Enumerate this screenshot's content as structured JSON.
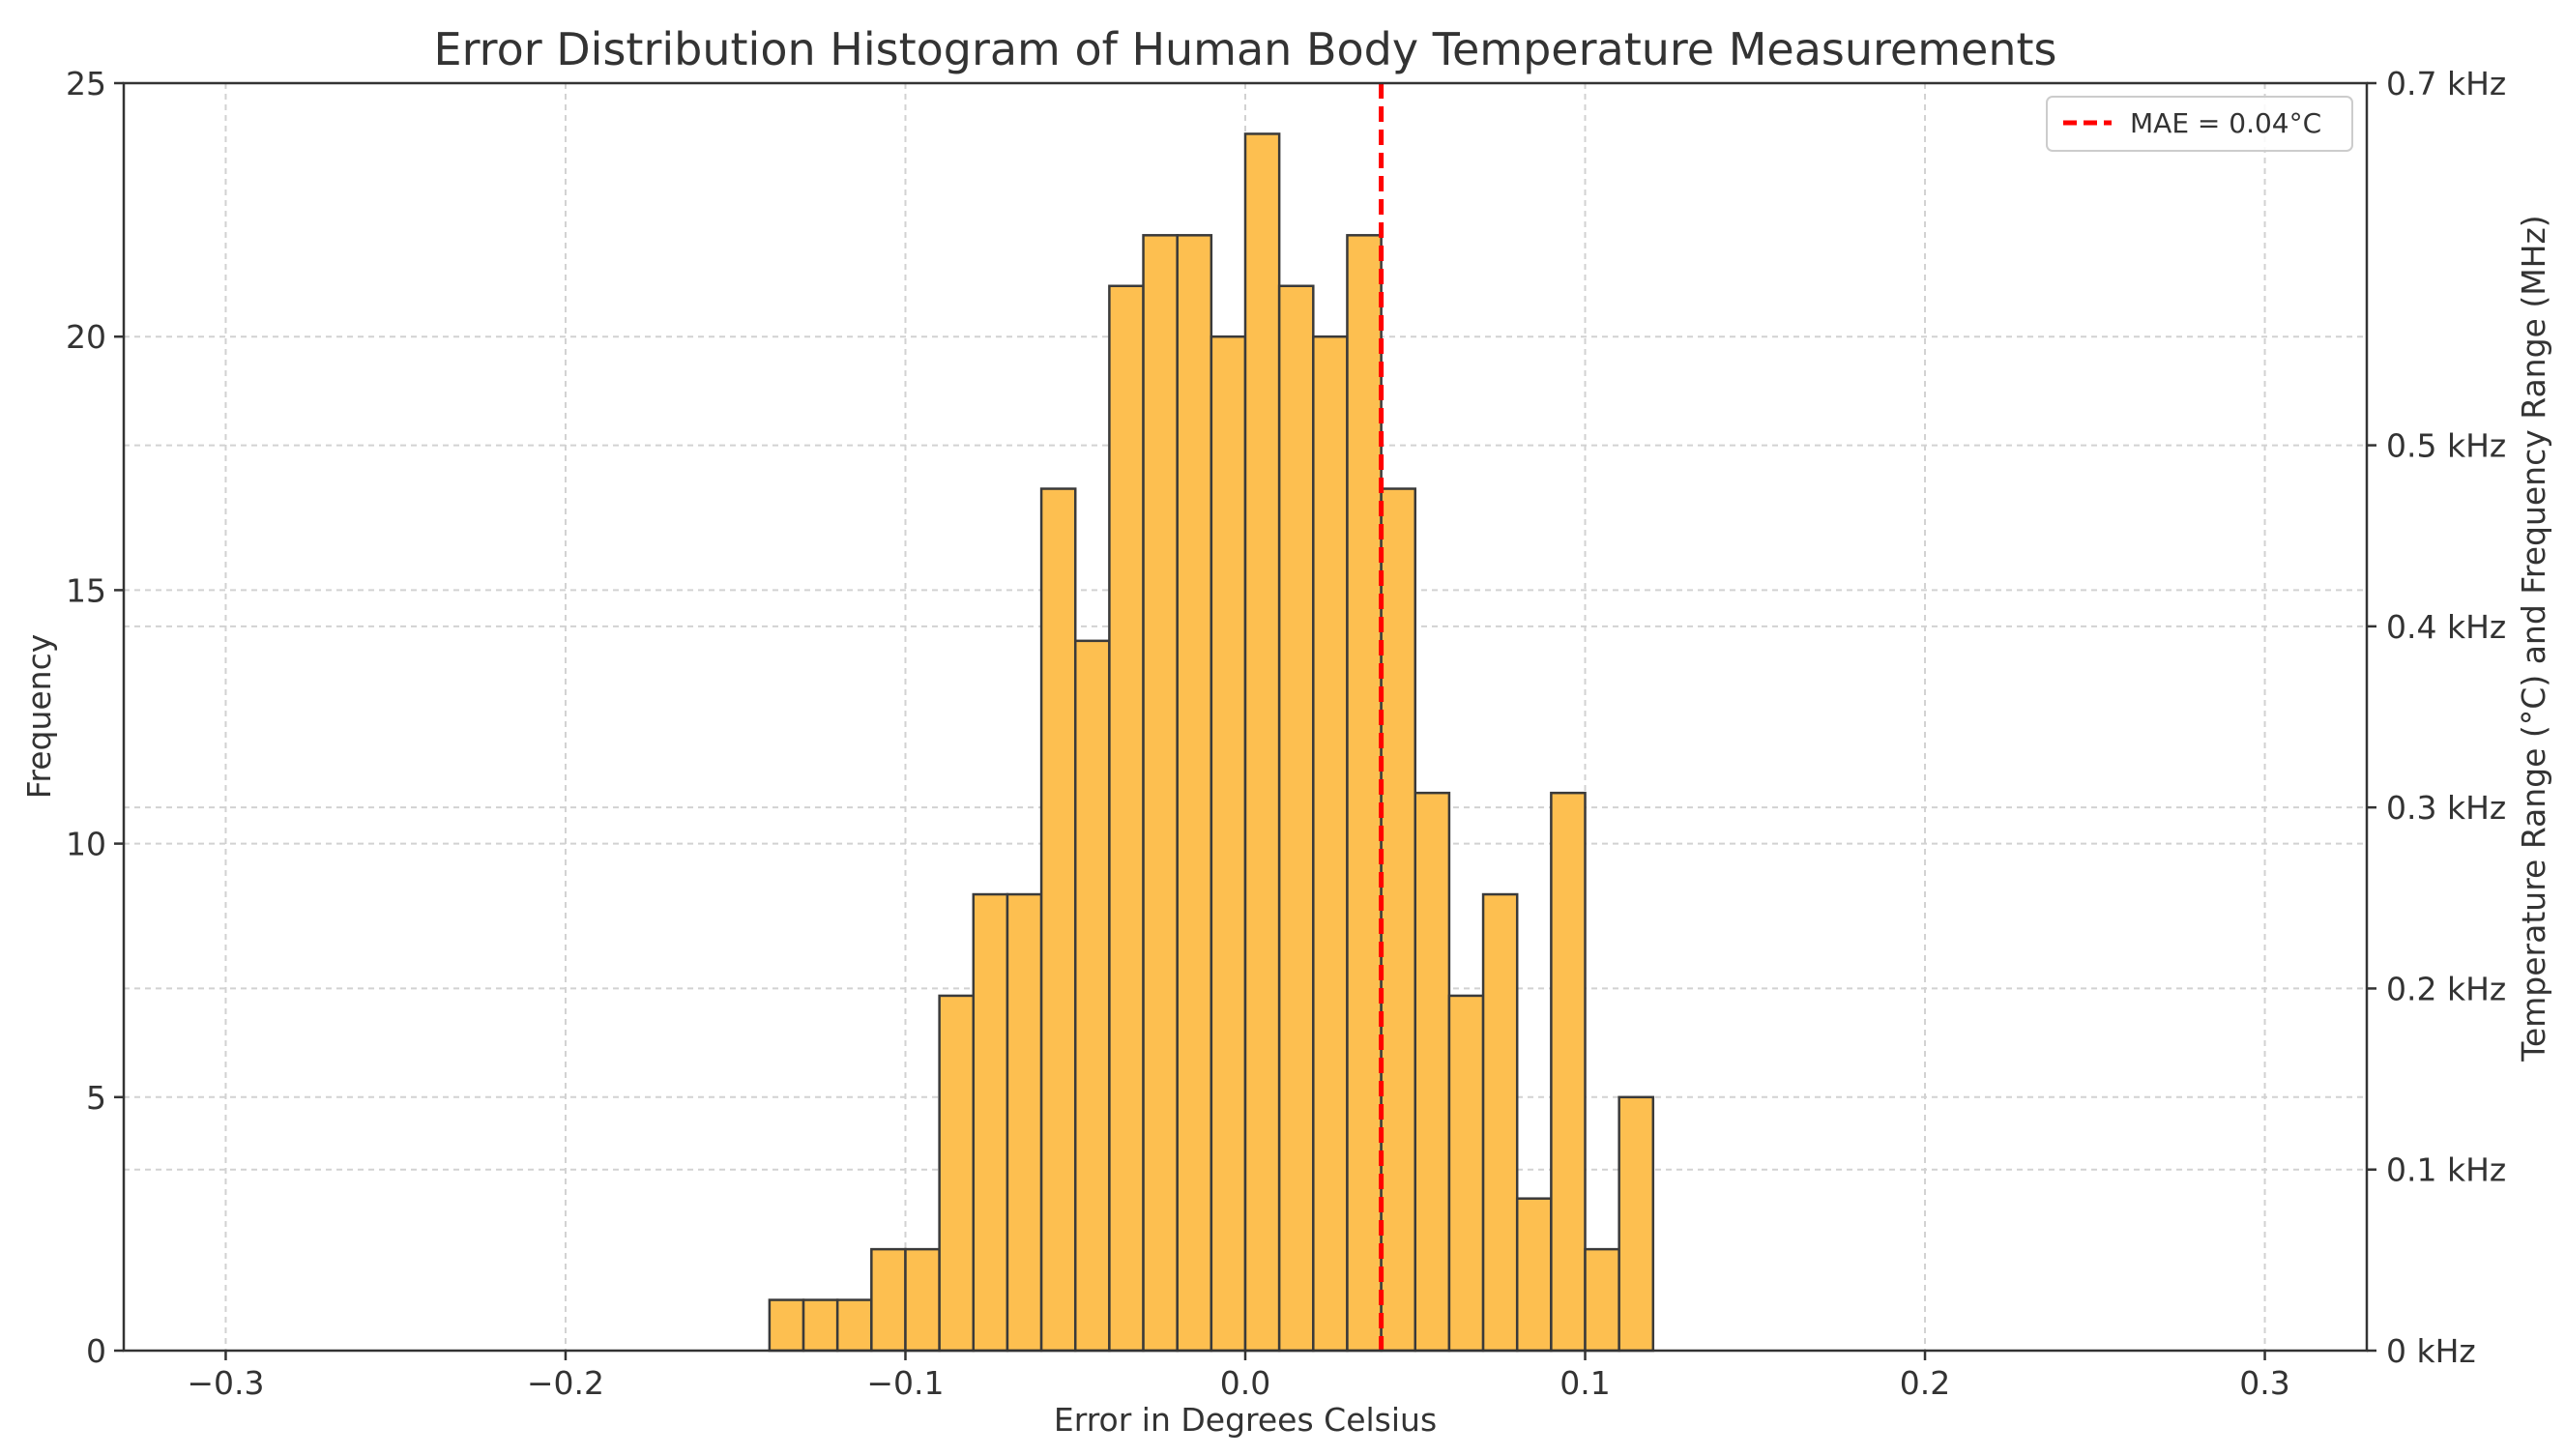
{
  "chart_data": {
    "type": "bar",
    "title": "Error Distribution Histogram of Human Body Temperature Measurements",
    "xlabel": "Error in Degrees Celsius",
    "ylabel": "Frequency",
    "y2label": "Temperature Range (°C) and Frequency Range (MHz)",
    "xlim": [
      -0.33,
      0.33
    ],
    "ylim": [
      0,
      25
    ],
    "y2lim": [
      0,
      0.7
    ],
    "grid": true,
    "x_ticks": [
      {
        "value": -0.3,
        "label": "−0.3"
      },
      {
        "value": -0.2,
        "label": "−0.2"
      },
      {
        "value": -0.1,
        "label": "−0.1"
      },
      {
        "value": 0.0,
        "label": "0.0"
      },
      {
        "value": 0.1,
        "label": "0.1"
      },
      {
        "value": 0.2,
        "label": "0.2"
      },
      {
        "value": 0.3,
        "label": "0.3"
      }
    ],
    "y_ticks": [
      {
        "value": 0,
        "label": "0"
      },
      {
        "value": 5,
        "label": "5"
      },
      {
        "value": 10,
        "label": "10"
      },
      {
        "value": 15,
        "label": "15"
      },
      {
        "value": 20,
        "label": "20"
      },
      {
        "value": 25,
        "label": "25"
      }
    ],
    "y2_ticks": [
      {
        "value": 0.0,
        "label": "0 kHz"
      },
      {
        "value": 0.1,
        "label": "0.1 kHz"
      },
      {
        "value": 0.2,
        "label": "0.2 kHz"
      },
      {
        "value": 0.3,
        "label": "0.3 kHz"
      },
      {
        "value": 0.4,
        "label": "0.4 kHz"
      },
      {
        "value": 0.5,
        "label": "0.5 kHz"
      },
      {
        "value": 0.7,
        "label": "0.7 kHz"
      }
    ],
    "bin_width": 0.01,
    "bin_starts": [
      -0.14,
      -0.13,
      -0.12,
      -0.11,
      -0.1,
      -0.09,
      -0.08,
      -0.07,
      -0.06,
      -0.05,
      -0.04,
      -0.03,
      -0.02,
      -0.01,
      0.0,
      0.01,
      0.02,
      0.03,
      0.04,
      0.05,
      0.06,
      0.07,
      0.08,
      0.09,
      0.1,
      0.11
    ],
    "values": [
      1,
      1,
      1,
      2,
      2,
      7,
      9,
      9,
      17,
      14,
      21,
      22,
      22,
      20,
      24,
      21,
      20,
      22,
      17,
      11,
      7,
      9,
      3,
      11,
      2,
      5
    ],
    "bar_color": "#fdbf50",
    "mae_line": {
      "x": 0.04,
      "color": "#ff0000",
      "label": "MAE = 0.04°C"
    },
    "legend_position": "top-right"
  }
}
